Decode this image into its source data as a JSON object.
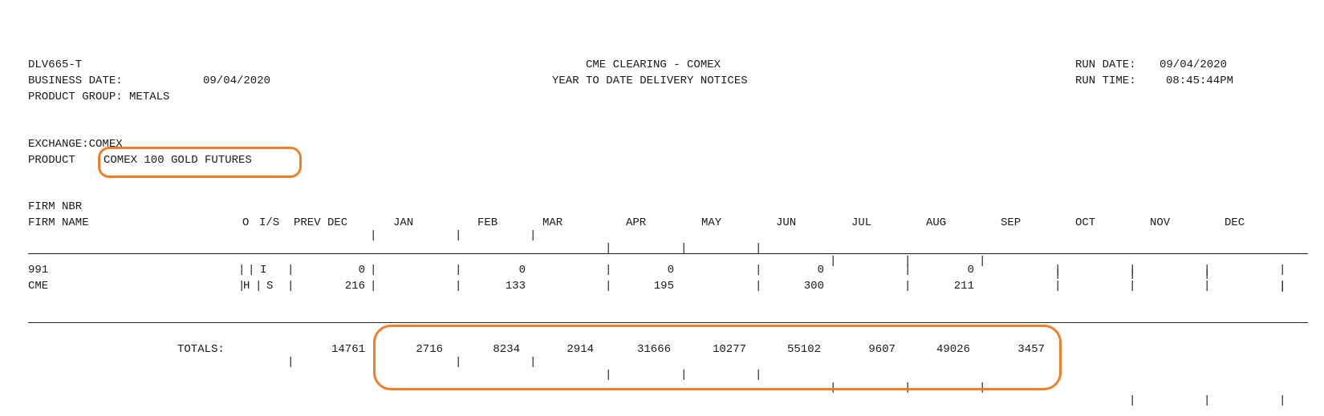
{
  "header": {
    "report_id": "DLV665-T",
    "business_date_label": "BUSINESS DATE:",
    "business_date": "09/04/2020",
    "product_group": "PRODUCT GROUP: METALS",
    "title": "CME CLEARING - COMEX",
    "subtitle": "YEAR TO DATE DELIVERY NOTICES",
    "run_date_label": "RUN DATE:",
    "run_date": "09/04/2020",
    "run_time_label": "RUN TIME:",
    "run_time": "08:45:44PM"
  },
  "exchange": {
    "exchange_line": "EXCHANGE:COMEX",
    "product_label": "PRODUCT",
    "product_name": "COMEX 100 GOLD FUTURES"
  },
  "columns": {
    "firm_nbr": "FIRM NBR",
    "firm_name": "FIRM NAME",
    "o": "O",
    "is": "I/S",
    "prev_dec": "PREV DEC",
    "jan": "JAN",
    "feb": "FEB",
    "mar": "MAR",
    "apr": "APR",
    "may": "MAY",
    "jun": "JUN",
    "jul": "JUL",
    "aug": "AUG",
    "sep": "SEP",
    "oct": "OCT",
    "nov": "NOV",
    "dec": "DEC"
  },
  "firm": {
    "nbr": "991",
    "name": "CME",
    "rows": [
      {
        "o": "",
        "is": "I",
        "prev_dec": "0",
        "feb": "0",
        "apr": "0",
        "jun": "0",
        "aug": "0"
      },
      {
        "o": "H",
        "is": "S",
        "prev_dec": "216",
        "feb": "133",
        "apr": "195",
        "jun": "300",
        "aug": "211"
      }
    ]
  },
  "totals": {
    "label": "TOTALS:",
    "prev_dec": "14761",
    "jan": "2716",
    "feb": "8234",
    "mar": "2914",
    "apr": "31666",
    "may": "10277",
    "jun": "55102",
    "jul": "9607",
    "aug": "49026",
    "sep": "3457"
  },
  "colors": {
    "highlight": "#ef7f2c",
    "text": "#1a1a1a"
  }
}
